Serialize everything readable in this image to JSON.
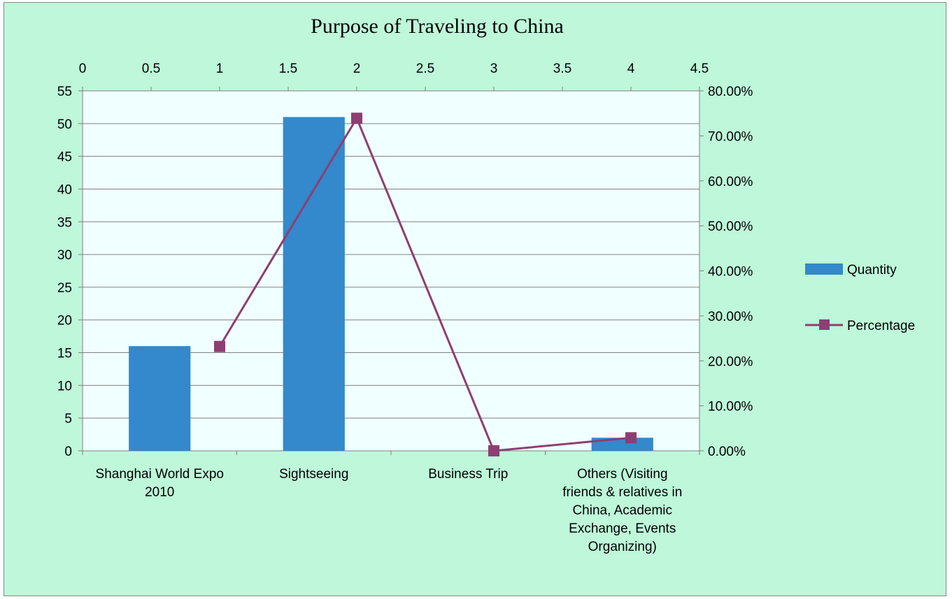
{
  "chart_data": {
    "type": "bar",
    "title": "Purpose of Traveling to China",
    "categories": [
      "Shanghai World Expo 2010",
      "Sightseeing",
      "Business Trip",
      "Others (Visiting friends & relatives in China, Academic Exchange, Events Organizing)"
    ],
    "category_label_lines": [
      [
        "Shanghai World Expo",
        "2010"
      ],
      [
        "Sightseeing"
      ],
      [
        "Business Trip"
      ],
      [
        "Others (Visiting",
        "friends & relatives in",
        "China, Academic",
        "Exchange, Events",
        "Organizing)"
      ]
    ],
    "series": [
      {
        "name": "Quantity",
        "type": "bar",
        "axis": "left",
        "color": "#3389CB",
        "values": [
          16,
          51,
          0,
          2
        ]
      },
      {
        "name": "Percentage",
        "type": "line",
        "axis": "right",
        "color": "#8E3E72",
        "x": [
          1,
          2,
          3,
          4
        ],
        "values": [
          0.2319,
          0.7391,
          0.0,
          0.029
        ]
      }
    ],
    "y_left": {
      "ylim": [
        0,
        55
      ],
      "ticks": [
        "0",
        "5",
        "10",
        "15",
        "20",
        "25",
        "30",
        "35",
        "40",
        "45",
        "50",
        "55"
      ]
    },
    "y_right": {
      "ylim": [
        0,
        0.8
      ],
      "ticks": [
        "0.00%",
        "10.00%",
        "20.00%",
        "30.00%",
        "40.00%",
        "50.00%",
        "60.00%",
        "70.00%",
        "80.00%"
      ]
    },
    "x_top": {
      "xlim": [
        0,
        4.5
      ],
      "ticks": [
        "0",
        "0.5",
        "1",
        "1.5",
        "2",
        "2.5",
        "3",
        "3.5",
        "4",
        "4.5"
      ]
    },
    "legend": {
      "position": "right"
    },
    "grid": true,
    "colors": {
      "background": "#BEF7D9",
      "plot_background": "#F0FFFF",
      "grid": "#808080"
    }
  }
}
